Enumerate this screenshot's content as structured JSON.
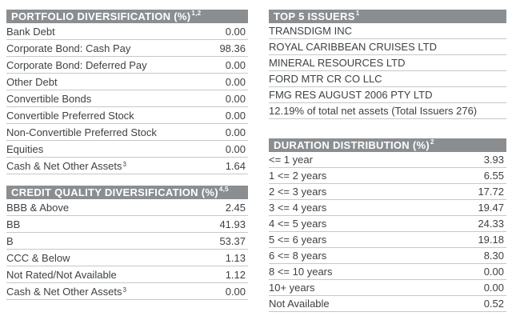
{
  "colors": {
    "header_bg": "#8b8e91",
    "header_text": "#ffffff",
    "row_text": "#3e4144",
    "divider": "#c5c7c9"
  },
  "sections": {
    "portfolio": {
      "title": "PORTFOLIO DIVERSIFICATION (%)",
      "title_sup": "1,2",
      "rows": [
        {
          "label": "Bank Debt",
          "value": "0.00"
        },
        {
          "label": "Corporate Bond: Cash Pay",
          "value": "98.36"
        },
        {
          "label": "Corporate Bond: Deferred Pay",
          "value": "0.00"
        },
        {
          "label": "Other Debt",
          "value": "0.00"
        },
        {
          "label": "Convertible Bonds",
          "value": "0.00"
        },
        {
          "label": "Convertible Preferred Stock",
          "value": "0.00"
        },
        {
          "label": "Non-Convertible Preferred Stock",
          "value": "0.00"
        },
        {
          "label": "Equities",
          "value": "0.00"
        },
        {
          "label": "Cash & Net Other Assets",
          "label_sup": "3",
          "value": "1.64"
        }
      ]
    },
    "credit_quality": {
      "title": "CREDIT QUALITY DIVERSIFICATION (%)",
      "title_sup": "4,5",
      "rows": [
        {
          "label": "BBB & Above",
          "value": "2.45"
        },
        {
          "label": "BB",
          "value": "41.93"
        },
        {
          "label": "B",
          "value": "53.37"
        },
        {
          "label": "CCC & Below",
          "value": "1.13"
        },
        {
          "label": "Not Rated/Not Available",
          "value": "1.12"
        },
        {
          "label": "Cash & Net Other Assets",
          "label_sup": "3",
          "value": "0.00"
        }
      ]
    },
    "top_issuers": {
      "title": "TOP 5 ISSUERS",
      "title_sup": "1",
      "rows": [
        {
          "label": "TRANSDIGM INC"
        },
        {
          "label": "ROYAL CARIBBEAN CRUISES LTD"
        },
        {
          "label": "MINERAL RESOURCES LTD"
        },
        {
          "label": "FORD MTR CR CO LLC"
        },
        {
          "label": "FMG RES AUGUST 2006 PTY LTD"
        },
        {
          "label": "12.19% of total net assets (Total Issuers 276)"
        }
      ]
    },
    "duration": {
      "title": "DURATION DISTRIBUTION (%)",
      "title_sup": "2",
      "rows": [
        {
          "label": "<= 1 year",
          "value": "3.93"
        },
        {
          "label": "1 <= 2 years",
          "value": "6.55"
        },
        {
          "label": "2 <= 3 years",
          "value": "17.72"
        },
        {
          "label": "3 <= 4 years",
          "value": "19.47"
        },
        {
          "label": "4 <= 5 years",
          "value": "24.33"
        },
        {
          "label": "5 <= 6 years",
          "value": "19.18"
        },
        {
          "label": "6 <= 8 years",
          "value": "8.30"
        },
        {
          "label": "8 <= 10 years",
          "value": "0.00"
        },
        {
          "label": "10+ years",
          "value": "0.00"
        },
        {
          "label": "Not Available",
          "value": "0.52"
        }
      ]
    }
  }
}
